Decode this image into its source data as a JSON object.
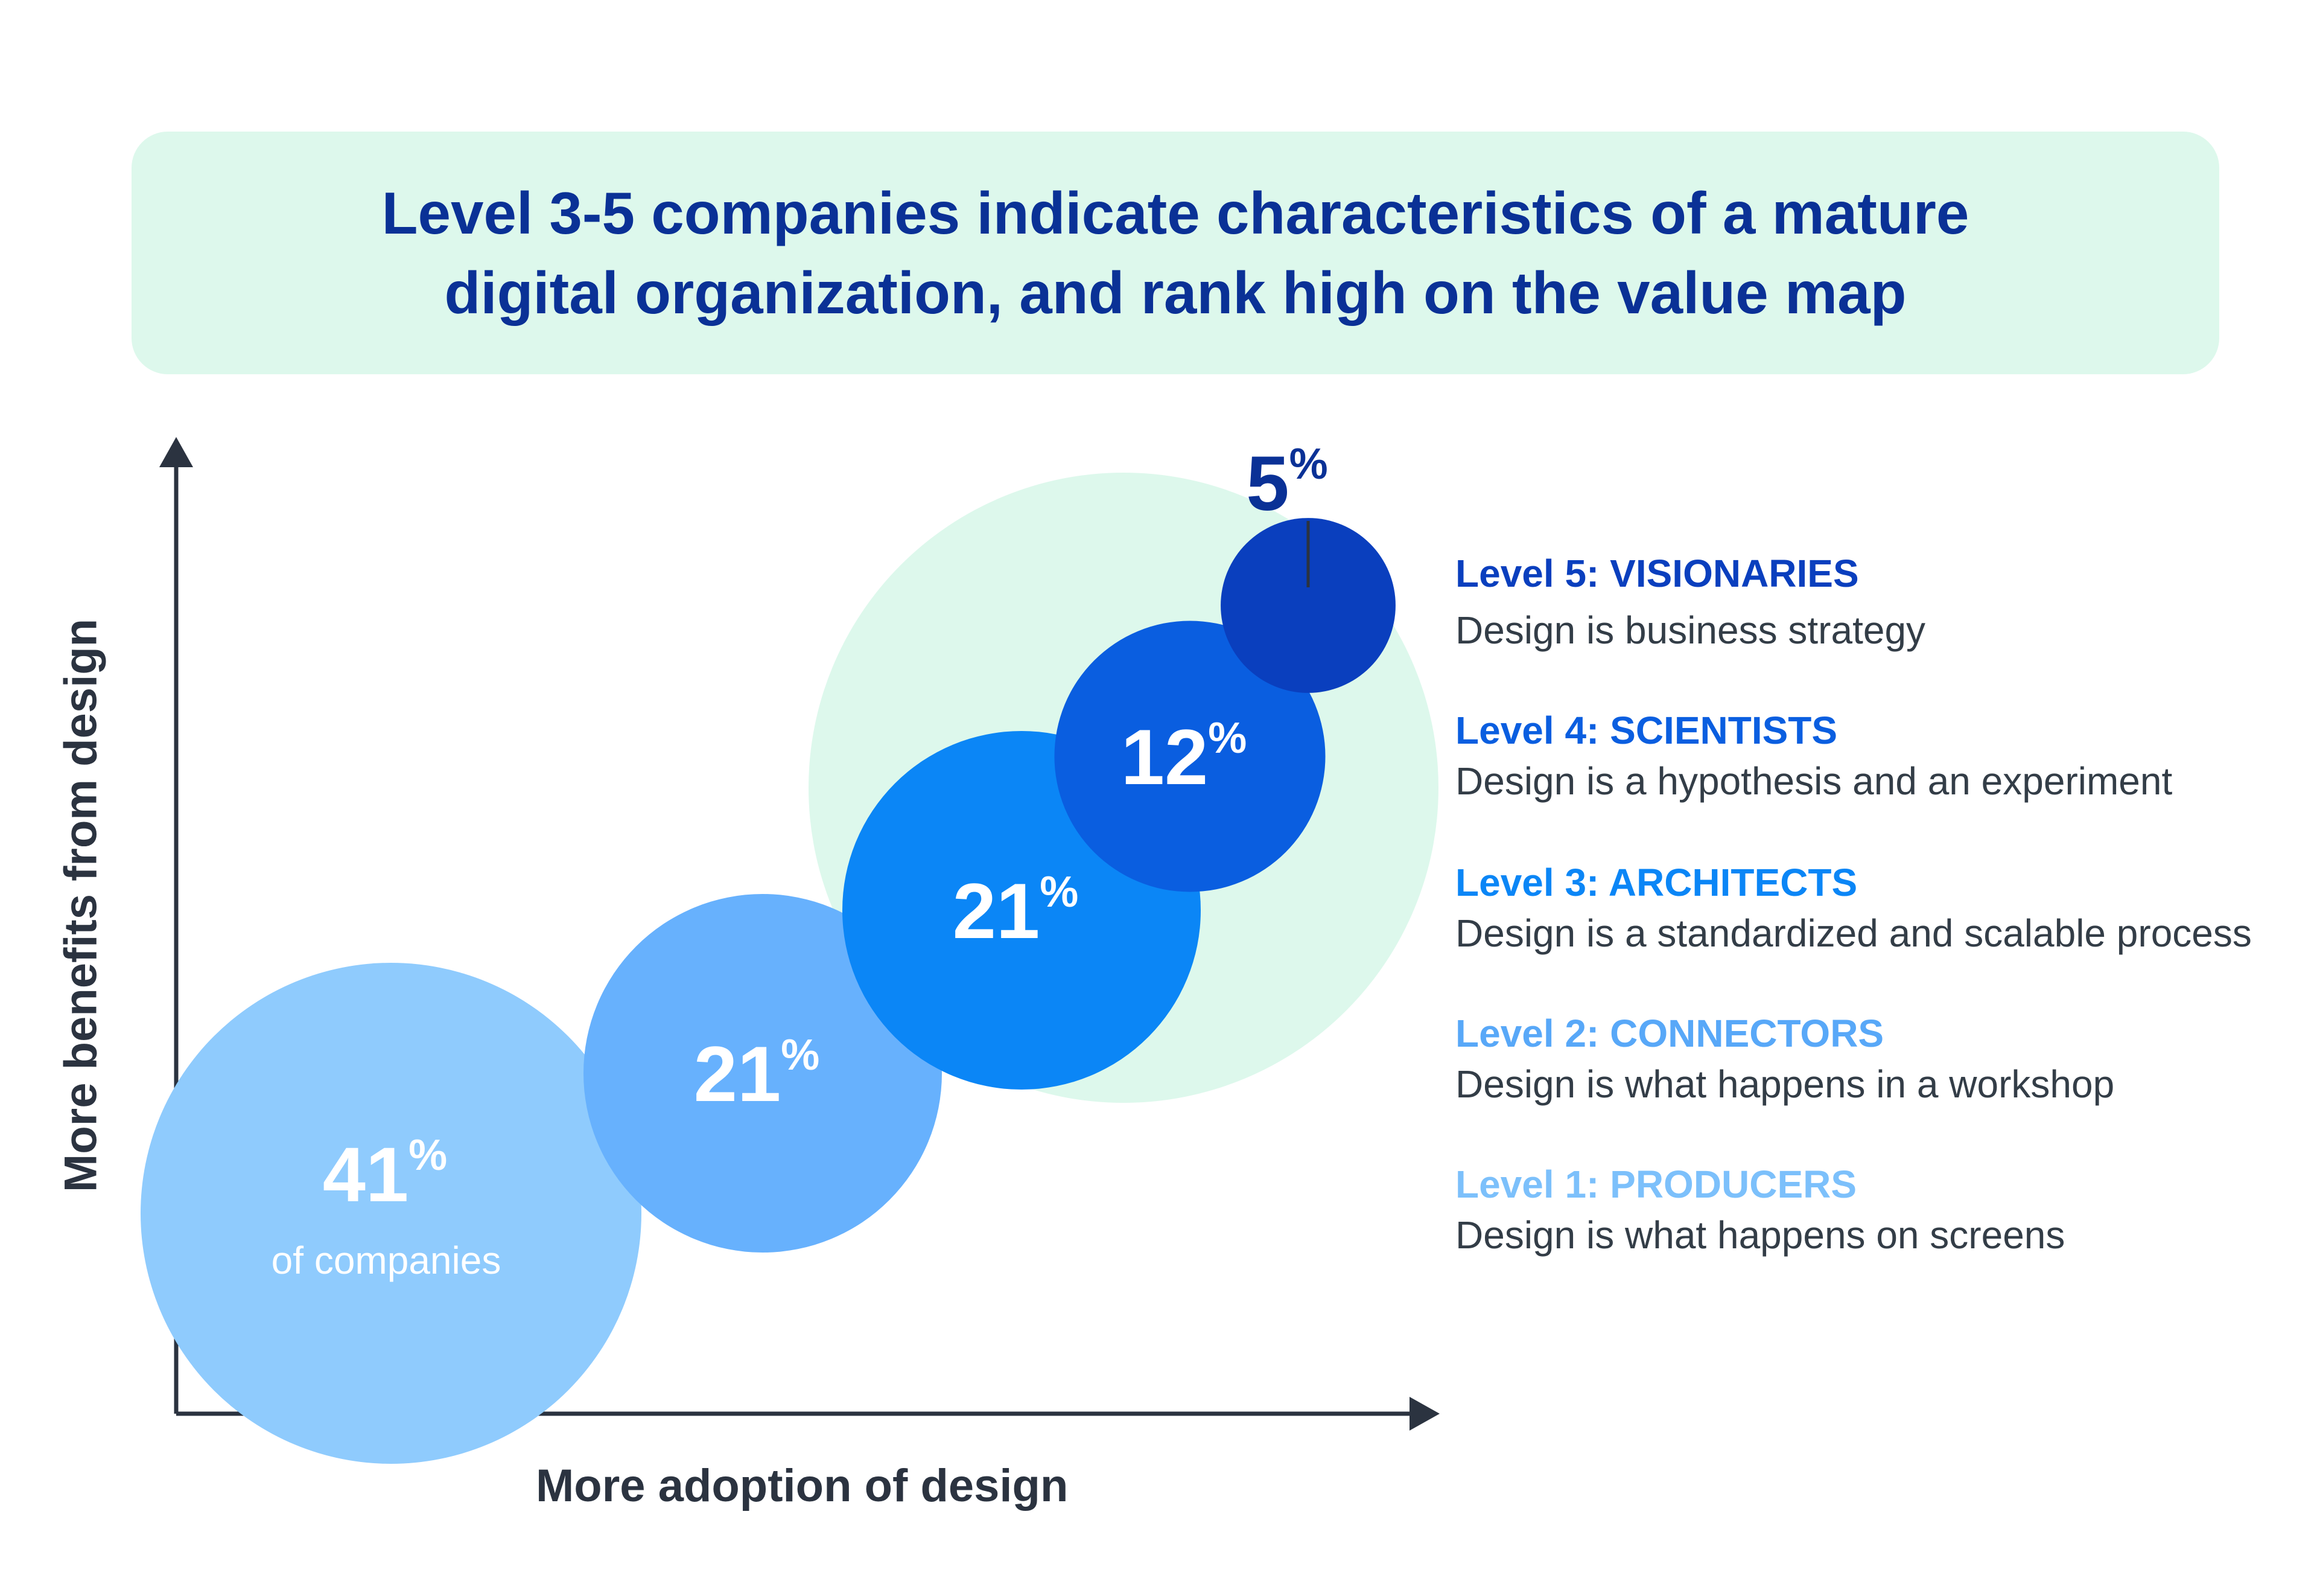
{
  "header": {
    "title_line1": "Level 3-5 companies indicate characteristics of a mature",
    "title_line2": "digital organization, and rank high on the value map"
  },
  "chart_data": {
    "type": "bubble",
    "xlabel": "More adoption of design",
    "ylabel": "More benefits from design",
    "highlight_group": [
      "Level 3",
      "Level 4",
      "Level 5"
    ],
    "bubbles": [
      {
        "level": "Level 1",
        "value": 41,
        "label": "41",
        "unit": "%",
        "sublabel": "of companies",
        "color": "#8fcbfd"
      },
      {
        "level": "Level 2",
        "value": 21,
        "label": "21",
        "unit": "%",
        "sublabel": "",
        "color": "#67b1fd"
      },
      {
        "level": "Level 3",
        "value": 21,
        "label": "21",
        "unit": "%",
        "sublabel": "",
        "color": "#0b86f6"
      },
      {
        "level": "Level 4",
        "value": 12,
        "label": "12",
        "unit": "%",
        "sublabel": "",
        "color": "#0a5ee0"
      },
      {
        "level": "Level 5",
        "value": 5,
        "label": "5",
        "unit": "%",
        "sublabel": "",
        "color": "#0a3fbe"
      }
    ],
    "colors": {
      "axis": "#2b3340",
      "highlight_circle": "#ddf8ec",
      "bubble_text": "#ffffff",
      "callout_text": "#0a3196"
    }
  },
  "legend": [
    {
      "title": "Level 5: VISIONARIES",
      "desc": "Design is business strategy",
      "color": "#0a3fbe"
    },
    {
      "title": "Level 4: SCIENTISTS",
      "desc": "Design is a hypothesis and an experiment",
      "color": "#0a5ee0"
    },
    {
      "title": "Level 3: ARCHITECTS",
      "desc": "Design is a standardized and scalable process",
      "color": "#0b86f6"
    },
    {
      "title": "Level 2: CONNECTORS",
      "desc": "Design is what happens in a workshop",
      "color": "#58a8f8"
    },
    {
      "title": "Level 1: PRODUCERS",
      "desc": "Design is what happens on screens",
      "color": "#7cc0fb"
    }
  ]
}
